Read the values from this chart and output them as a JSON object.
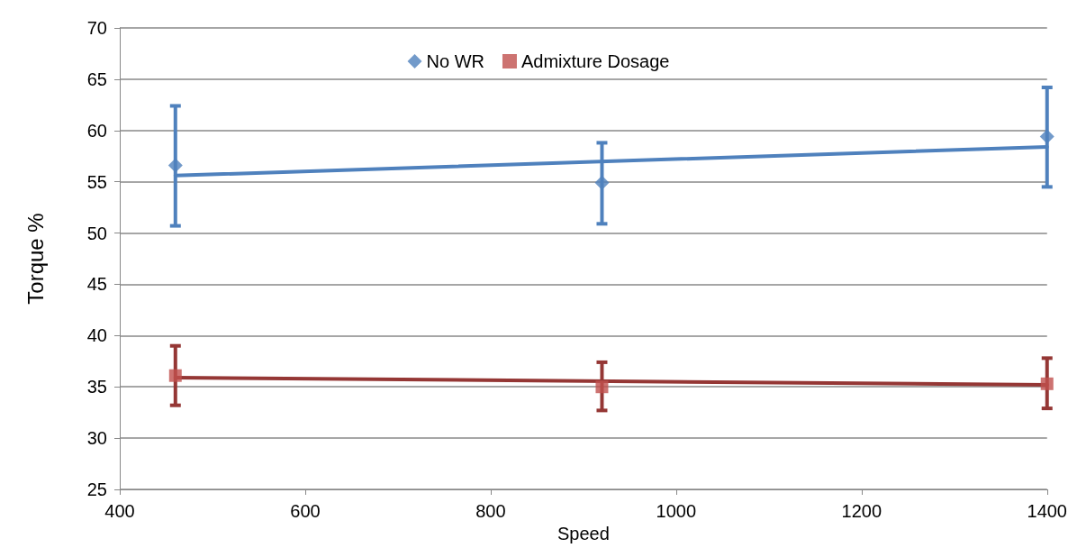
{
  "chart_data": {
    "type": "scatter",
    "xlabel": "Speed",
    "ylabel": "Torque %",
    "xlim": [
      400,
      1400
    ],
    "xticks": [
      400,
      600,
      800,
      1000,
      1200,
      1400
    ],
    "ylim": [
      25,
      70
    ],
    "yticks": [
      25,
      30,
      35,
      40,
      45,
      50,
      55,
      60,
      65,
      70
    ],
    "grid": "y",
    "legend": "top",
    "series": [
      {
        "name": "No WR",
        "marker": "diamond",
        "color": "#4f81bd",
        "x": [
          460,
          920,
          1400
        ],
        "values": [
          56.6,
          54.9,
          59.4
        ],
        "errors": [
          [
            50.7,
            62.4
          ],
          [
            50.9,
            58.8
          ],
          [
            54.5,
            64.2
          ]
        ]
      },
      {
        "name": "Admixture Dosage",
        "marker": "square",
        "color": "#c0504d",
        "x": [
          460,
          920,
          1400
        ],
        "values": [
          36.1,
          35.0,
          35.3
        ],
        "errors": [
          [
            33.2,
            39.0
          ],
          [
            32.7,
            37.4
          ],
          [
            32.9,
            37.8
          ]
        ]
      },
      {
        "type": "line",
        "marker": "none",
        "color": "#4f81bd",
        "x": [
          460,
          1400
        ],
        "values": [
          55.6,
          58.4
        ]
      },
      {
        "type": "line",
        "marker": "none",
        "color": "#953735",
        "x": [
          460,
          1400
        ],
        "values": [
          35.9,
          35.2
        ]
      }
    ]
  }
}
